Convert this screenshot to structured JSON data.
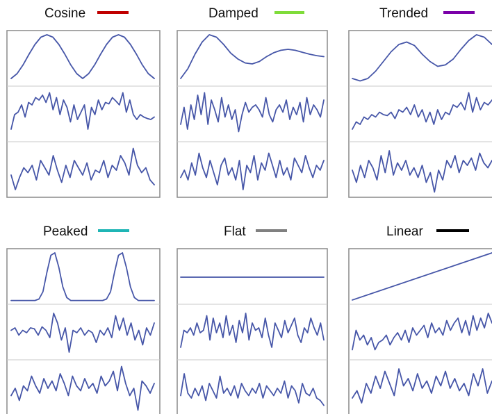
{
  "chart_data": [
    {
      "type": "line",
      "title": "Cosine",
      "colors": {
        "legend_swatch": "#c00000",
        "line": "#4656a8"
      },
      "tracks": [
        [
          0.1,
          0.2,
          0.38,
          0.6,
          0.8,
          0.95,
          1.0,
          0.95,
          0.8,
          0.6,
          0.38,
          0.2,
          0.1,
          0.2,
          0.38,
          0.6,
          0.8,
          0.95,
          1.0,
          0.95,
          0.8,
          0.6,
          0.38,
          0.2,
          0.1
        ],
        [
          0.2,
          0.5,
          0.55,
          0.7,
          0.45,
          0.75,
          0.7,
          0.85,
          0.8,
          0.9,
          0.75,
          0.95,
          0.6,
          0.85,
          0.5,
          0.8,
          0.65,
          0.35,
          0.7,
          0.4,
          0.55,
          0.7,
          0.2,
          0.65,
          0.5,
          0.8,
          0.6,
          0.75,
          0.72,
          0.85,
          0.78,
          0.7,
          0.95,
          0.55,
          0.8,
          0.5,
          0.4,
          0.5,
          0.45,
          0.42,
          0.4,
          0.45
        ],
        [
          0.4,
          0.1,
          0.35,
          0.55,
          0.45,
          0.6,
          0.3,
          0.7,
          0.55,
          0.4,
          0.8,
          0.5,
          0.25,
          0.6,
          0.35,
          0.7,
          0.55,
          0.4,
          0.65,
          0.3,
          0.5,
          0.45,
          0.7,
          0.35,
          0.6,
          0.5,
          0.8,
          0.65,
          0.4,
          0.95,
          0.6,
          0.45,
          0.55,
          0.3,
          0.2
        ]
      ]
    },
    {
      "type": "line",
      "title": "Damped",
      "colors": {
        "legend_swatch": "#7fdc3a",
        "line": "#4656a8"
      },
      "tracks": [
        [
          0.1,
          0.3,
          0.6,
          0.85,
          1.0,
          0.95,
          0.8,
          0.62,
          0.5,
          0.42,
          0.4,
          0.45,
          0.55,
          0.63,
          0.68,
          0.7,
          0.68,
          0.64,
          0.6,
          0.57,
          0.55
        ],
        [
          0.3,
          0.65,
          0.2,
          0.7,
          0.4,
          0.9,
          0.5,
          0.95,
          0.3,
          0.8,
          0.6,
          0.35,
          0.85,
          0.45,
          0.7,
          0.4,
          0.6,
          0.15,
          0.5,
          0.75,
          0.55,
          0.65,
          0.7,
          0.6,
          0.45,
          0.85,
          0.5,
          0.35,
          0.6,
          0.7,
          0.55,
          0.8,
          0.4,
          0.65,
          0.5,
          0.75,
          0.35,
          0.85,
          0.5,
          0.7,
          0.6,
          0.45,
          0.8
        ],
        [
          0.35,
          0.5,
          0.3,
          0.65,
          0.4,
          0.85,
          0.55,
          0.35,
          0.7,
          0.45,
          0.2,
          0.6,
          0.75,
          0.4,
          0.55,
          0.3,
          0.7,
          0.1,
          0.6,
          0.45,
          0.8,
          0.3,
          0.65,
          0.5,
          0.85,
          0.6,
          0.35,
          0.7,
          0.4,
          0.55,
          0.3,
          0.75,
          0.6,
          0.45,
          0.8,
          0.55,
          0.35,
          0.6,
          0.5,
          0.7
        ]
      ]
    },
    {
      "type": "line",
      "title": "Trended",
      "colors": {
        "legend_swatch": "#7a00a8",
        "line": "#4656a8"
      },
      "tracks": [
        [
          0.1,
          0.05,
          0.1,
          0.25,
          0.45,
          0.65,
          0.8,
          0.85,
          0.78,
          0.6,
          0.45,
          0.35,
          0.38,
          0.5,
          0.7,
          0.88,
          1.0,
          0.95,
          0.8
        ],
        [
          0.2,
          0.35,
          0.3,
          0.45,
          0.4,
          0.5,
          0.45,
          0.55,
          0.5,
          0.48,
          0.55,
          0.42,
          0.6,
          0.55,
          0.65,
          0.5,
          0.7,
          0.45,
          0.6,
          0.35,
          0.55,
          0.3,
          0.6,
          0.4,
          0.55,
          0.5,
          0.7,
          0.65,
          0.75,
          0.6,
          0.95,
          0.55,
          0.85,
          0.6,
          0.75,
          0.7,
          0.8
        ],
        [
          0.5,
          0.25,
          0.6,
          0.35,
          0.7,
          0.55,
          0.3,
          0.8,
          0.45,
          0.9,
          0.4,
          0.65,
          0.5,
          0.7,
          0.4,
          0.55,
          0.35,
          0.6,
          0.25,
          0.45,
          0.05,
          0.5,
          0.3,
          0.7,
          0.55,
          0.8,
          0.45,
          0.7,
          0.6,
          0.75,
          0.5,
          0.85,
          0.65,
          0.55,
          0.7
        ]
      ]
    },
    {
      "type": "line",
      "title": "Peaked",
      "colors": {
        "legend_swatch": "#1fb5b5",
        "line": "#4656a8"
      },
      "tracks": [
        [
          0.02,
          0.02,
          0.02,
          0.02,
          0.02,
          0.02,
          0.02,
          0.05,
          0.2,
          0.6,
          0.95,
          1.0,
          0.7,
          0.3,
          0.08,
          0.02,
          0.02,
          0.02,
          0.02,
          0.02,
          0.02,
          0.02,
          0.02,
          0.02,
          0.05,
          0.2,
          0.6,
          0.95,
          1.0,
          0.7,
          0.3,
          0.08,
          0.02,
          0.02,
          0.02,
          0.02,
          0.02
        ],
        [
          0.55,
          0.6,
          0.45,
          0.55,
          0.5,
          0.6,
          0.58,
          0.45,
          0.62,
          0.55,
          0.4,
          0.9,
          0.7,
          0.35,
          0.6,
          0.1,
          0.55,
          0.5,
          0.6,
          0.45,
          0.55,
          0.5,
          0.3,
          0.55,
          0.45,
          0.6,
          0.4,
          0.85,
          0.55,
          0.8,
          0.45,
          0.7,
          0.35,
          0.55,
          0.25,
          0.6,
          0.45,
          0.7
        ],
        [
          0.35,
          0.5,
          0.25,
          0.55,
          0.45,
          0.75,
          0.55,
          0.4,
          0.7,
          0.5,
          0.65,
          0.45,
          0.8,
          0.6,
          0.35,
          0.75,
          0.55,
          0.45,
          0.7,
          0.5,
          0.6,
          0.4,
          0.75,
          0.55,
          0.65,
          0.85,
          0.45,
          0.95,
          0.6,
          0.35,
          0.5,
          0.05,
          0.65,
          0.55,
          0.4,
          0.6
        ]
      ]
    },
    {
      "type": "line",
      "title": "Flat",
      "colors": {
        "legend_swatch": "#808080",
        "line": "#4656a8"
      },
      "tracks": [
        [
          0.5,
          0.5
        ],
        [
          0.2,
          0.55,
          0.5,
          0.6,
          0.45,
          0.7,
          0.5,
          0.55,
          0.85,
          0.35,
          0.8,
          0.5,
          0.7,
          0.4,
          0.85,
          0.45,
          0.65,
          0.3,
          0.75,
          0.5,
          0.9,
          0.35,
          0.7,
          0.55,
          0.6,
          0.4,
          0.8,
          0.45,
          0.2,
          0.7,
          0.55,
          0.4,
          0.75,
          0.5,
          0.65,
          0.8,
          0.45,
          0.3,
          0.6,
          0.5,
          0.8,
          0.6,
          0.45,
          0.7,
          0.35
        ],
        [
          0.35,
          0.8,
          0.4,
          0.3,
          0.5,
          0.35,
          0.55,
          0.25,
          0.6,
          0.45,
          0.3,
          0.75,
          0.4,
          0.5,
          0.35,
          0.55,
          0.3,
          0.6,
          0.45,
          0.35,
          0.5,
          0.4,
          0.6,
          0.3,
          0.55,
          0.45,
          0.35,
          0.5,
          0.4,
          0.65,
          0.3,
          0.55,
          0.45,
          0.2,
          0.6,
          0.4,
          0.35,
          0.5,
          0.3,
          0.25,
          0.15
        ]
      ]
    },
    {
      "type": "line",
      "title": "Linear",
      "colors": {
        "legend_swatch": "#000000",
        "line": "#4656a8"
      },
      "tracks": [
        [
          0.03,
          1.0
        ],
        [
          0.15,
          0.55,
          0.35,
          0.45,
          0.25,
          0.4,
          0.15,
          0.3,
          0.35,
          0.45,
          0.25,
          0.4,
          0.5,
          0.35,
          0.55,
          0.3,
          0.6,
          0.45,
          0.55,
          0.65,
          0.4,
          0.7,
          0.5,
          0.6,
          0.45,
          0.75,
          0.55,
          0.7,
          0.8,
          0.5,
          0.75,
          0.45,
          0.85,
          0.55,
          0.8,
          0.6,
          0.9,
          0.7
        ],
        [
          0.3,
          0.45,
          0.2,
          0.6,
          0.4,
          0.75,
          0.5,
          0.85,
          0.6,
          0.35,
          0.9,
          0.55,
          0.7,
          0.45,
          0.8,
          0.5,
          0.65,
          0.4,
          0.75,
          0.55,
          0.85,
          0.5,
          0.7,
          0.45,
          0.6,
          0.35,
          0.8,
          0.55,
          0.9,
          0.4,
          0.65
        ]
      ]
    }
  ]
}
